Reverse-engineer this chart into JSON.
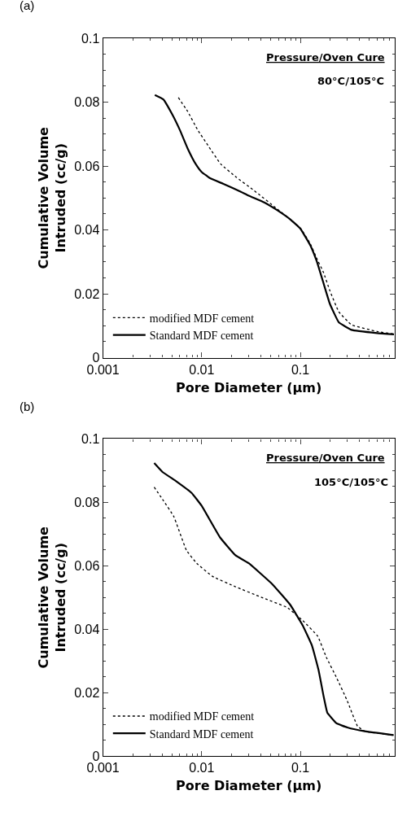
{
  "chart_data": [
    {
      "type": "line",
      "title": "(a)",
      "xlabel": "Pore Diameter (μm)",
      "ylabel": "Cumulative Volume\nIntruded (cc/g)",
      "log": "x",
      "legend": "bottom left",
      "xlim": [
        0.001,
        0.9
      ],
      "xticks": [
        0.001,
        0.01,
        0.1
      ],
      "ylim": [
        0,
        0.1
      ],
      "yticks": [
        0,
        0.02,
        0.04,
        0.06,
        0.08,
        0.1
      ],
      "annotations": [
        "Pressure/Oven Cure",
        "80°C/105°C"
      ],
      "series": [
        {
          "name": "modified MDF cement",
          "color": "#000000",
          "line_style": "dotted",
          "x": [
            0.0058,
            0.0072,
            0.0091,
            0.0116,
            0.0156,
            0.0224,
            0.034,
            0.058,
            0.079,
            0.1,
            0.127,
            0.147,
            0.171,
            0.199,
            0.245,
            0.33,
            0.6,
            0.89
          ],
          "values": [
            0.0814,
            0.0771,
            0.0713,
            0.0664,
            0.0606,
            0.0565,
            0.0523,
            0.0466,
            0.0433,
            0.0406,
            0.0355,
            0.031,
            0.0268,
            0.021,
            0.0144,
            0.0103,
            0.0082,
            0.0074
          ]
        },
        {
          "name": "Standard MDF cement",
          "color": "#000000",
          "line_style": "solid",
          "x": [
            0.00335,
            0.0041,
            0.005,
            0.006,
            0.0072,
            0.0087,
            0.01,
            0.0123,
            0.0166,
            0.025,
            0.03,
            0.043,
            0.058,
            0.079,
            0.1,
            0.127,
            0.147,
            0.171,
            0.199,
            0.245,
            0.33,
            0.6,
            0.89
          ],
          "values": [
            0.0822,
            0.0808,
            0.0763,
            0.0713,
            0.0655,
            0.0606,
            0.0581,
            0.0561,
            0.0544,
            0.0519,
            0.0507,
            0.0486,
            0.0462,
            0.0433,
            0.0404,
            0.035,
            0.0301,
            0.0235,
            0.0169,
            0.0111,
            0.0087,
            0.0077,
            0.0073
          ]
        }
      ]
    },
    {
      "type": "line",
      "title": "(b)",
      "xlabel": "Pore Diameter (μm)",
      "ylabel": "Cumulative Volume\nIntruded (cc/g)",
      "log": "x",
      "legend": "bottom left",
      "xlim": [
        0.001,
        0.9
      ],
      "xticks": [
        0.001,
        0.01,
        0.1
      ],
      "ylim": [
        0,
        0.1
      ],
      "yticks": [
        0,
        0.02,
        0.04,
        0.06,
        0.08,
        0.1
      ],
      "annotations": [
        "Pressure/Oven Cure",
        "105°C/105°C"
      ],
      "series": [
        {
          "name": "modified MDF cement",
          "color": "#000000",
          "line_style": "dotted",
          "x": [
            0.0033,
            0.0041,
            0.0052,
            0.007,
            0.0089,
            0.0128,
            0.022,
            0.04,
            0.074,
            0.106,
            0.15,
            0.183,
            0.233,
            0.3,
            0.38,
            0.45,
            0.88
          ],
          "values": [
            0.0848,
            0.0805,
            0.0756,
            0.0649,
            0.0608,
            0.0567,
            0.0534,
            0.0501,
            0.0468,
            0.0427,
            0.0378,
            0.0312,
            0.0247,
            0.0173,
            0.0094,
            0.0078,
            0.0066
          ]
        },
        {
          "name": "Standard MDF cement",
          "color": "#000000",
          "line_style": "solid",
          "x": [
            0.0033,
            0.004,
            0.0055,
            0.0079,
            0.01,
            0.0153,
            0.022,
            0.03,
            0.052,
            0.079,
            0.106,
            0.131,
            0.153,
            0.172,
            0.188,
            0.233,
            0.3,
            0.45,
            0.88
          ],
          "values": [
            0.0924,
            0.0896,
            0.0867,
            0.083,
            0.0789,
            0.069,
            0.0633,
            0.0608,
            0.0542,
            0.0477,
            0.0411,
            0.0349,
            0.0271,
            0.0189,
            0.0136,
            0.0103,
            0.009,
            0.0078,
            0.0066
          ]
        }
      ]
    }
  ]
}
